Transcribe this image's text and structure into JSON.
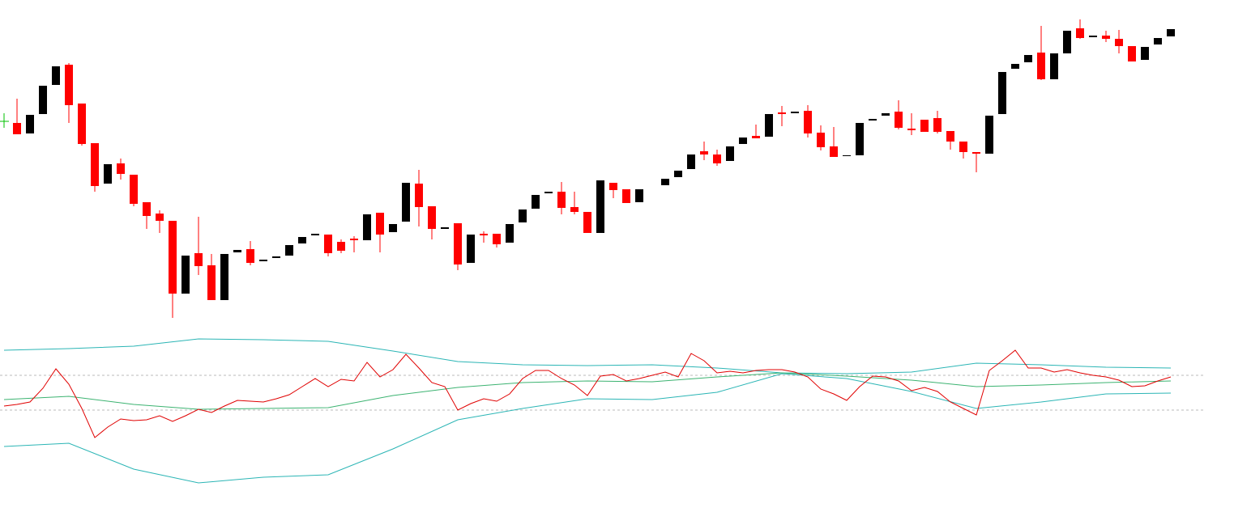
{
  "chart_data": [
    {
      "type": "candlestick",
      "up_color": "#000000",
      "down_color": "#ff0000",
      "doji_color": "#00c000",
      "xlim": [
        0,
        90
      ],
      "ylim": [
        0,
        400
      ],
      "open": [
        250,
        248,
        235,
        259,
        295,
        320,
        272,
        223,
        173,
        198,
        184,
        150,
        136,
        127,
        37,
        87,
        72,
        29,
        88,
        92,
        77,
        81,
        84,
        99,
        109,
        110,
        101,
        105,
        103,
        137,
        113,
        126,
        173,
        145,
        117,
        124,
        75,
        111,
        111,
        100,
        125,
        142,
        161,
        163,
        144,
        138,
        112,
        174,
        166,
        150,
        null,
        171,
        181,
        191,
        213,
        209,
        201,
        222,
        232,
        231,
        261,
        260,
        263,
        236,
        219,
        207,
        208,
        251,
        257,
        262,
        241,
        252,
        254,
        238,
        225,
        212,
        210,
        259,
        315,
        323,
        335,
        302,
        334,
        365,
        354,
        356,
        352,
        343,
        326,
        345,
        355
      ],
      "high": [
        260,
        278,
        258,
        294,
        318,
        322,
        272,
        223,
        197,
        204,
        184,
        150,
        140,
        127,
        84,
        132,
        86,
        86,
        91,
        102,
        79,
        83,
        97,
        107,
        111,
        110,
        104,
        108,
        135,
        137,
        123,
        174,
        190,
        145,
        119,
        124,
        110,
        114,
        111,
        123,
        141,
        159,
        163,
        175,
        163,
        138,
        177,
        174,
        166,
        166,
        null,
        179,
        189,
        209,
        225,
        215,
        219,
        230,
        246,
        259,
        269,
        262,
        270,
        245,
        243,
        208,
        248,
        253,
        260,
        276,
        260,
        252,
        263,
        238,
        225,
        212,
        257,
        311,
        321,
        332,
        368,
        334,
        362,
        376,
        356,
        362,
        363,
        343,
        342,
        353,
        364
      ],
      "low": [
        242,
        234,
        235,
        259,
        295,
        248,
        220,
        163,
        173,
        178,
        145,
        117,
        112,
        7,
        37,
        60,
        29,
        29,
        88,
        72,
        77,
        81,
        84,
        99,
        109,
        83,
        87,
        88,
        103,
        88,
        113,
        126,
        120,
        104,
        117,
        66,
        75,
        100,
        94,
        100,
        125,
        142,
        161,
        135,
        135,
        112,
        112,
        155,
        149,
        150,
        null,
        171,
        181,
        191,
        202,
        195,
        201,
        222,
        229,
        231,
        244,
        260,
        230,
        214,
        206,
        207,
        208,
        251,
        257,
        240,
        233,
        237,
        235,
        215,
        204,
        187,
        210,
        259,
        315,
        323,
        301,
        302,
        334,
        352,
        354,
        348,
        334,
        324,
        326,
        345,
        355
      ],
      "close": [
        250,
        234,
        258,
        294,
        318,
        270,
        222,
        170,
        197,
        185,
        148,
        133,
        127,
        37,
        84,
        71,
        29,
        86,
        91,
        75,
        79,
        83,
        97,
        107,
        111,
        87,
        90,
        103,
        135,
        110,
        123,
        174,
        144,
        117,
        119,
        73,
        110,
        109,
        98,
        123,
        141,
        159,
        163,
        143,
        138,
        112,
        177,
        165,
        149,
        166,
        null,
        179,
        189,
        209,
        209,
        198,
        219,
        230,
        229,
        259,
        259,
        262,
        235,
        218,
        206,
        208,
        248,
        253,
        260,
        242,
        239,
        237,
        237,
        225,
        212,
        210,
        257,
        311,
        321,
        332,
        302,
        334,
        362,
        353,
        356,
        352,
        343,
        324,
        342,
        353,
        364
      ]
    },
    {
      "type": "line",
      "xlim": [
        0,
        90
      ],
      "ylim": [
        0,
        200
      ],
      "hlines": [
        146,
        103
      ],
      "hline_color": "#bbbbbb",
      "series": [
        {
          "color": "#2bb5b5",
          "x": [
            0,
            5,
            10,
            15,
            20,
            25,
            30,
            35,
            40,
            45,
            50,
            55,
            60,
            65,
            70,
            75,
            80,
            85,
            90
          ],
          "values": [
            177,
            179,
            182,
            191,
            190,
            188,
            176,
            163,
            159,
            158,
            159,
            155,
            149,
            148,
            150,
            161,
            159,
            156,
            155
          ]
        },
        {
          "color": "#3cb371",
          "x": [
            0,
            5,
            10,
            15,
            20,
            25,
            30,
            35,
            40,
            45,
            50,
            55,
            60,
            65,
            70,
            75,
            80,
            85,
            90
          ],
          "values": [
            116,
            120,
            110,
            104,
            105,
            106,
            121,
            131,
            137,
            139,
            138,
            144,
            149,
            145,
            140,
            132,
            134,
            137,
            139
          ]
        },
        {
          "color": "#2bb5b5",
          "x": [
            0,
            5,
            10,
            15,
            20,
            25,
            30,
            35,
            40,
            45,
            50,
            55,
            60,
            65,
            70,
            75,
            80,
            85,
            90
          ],
          "values": [
            58,
            62,
            30,
            13,
            20,
            23,
            55,
            91,
            105,
            117,
            116,
            125,
            148,
            142,
            126,
            105,
            113,
            123,
            124
          ]
        },
        {
          "color": "#e00000",
          "x": [
            0,
            1,
            2,
            3,
            4,
            5,
            6,
            7,
            8,
            9,
            10,
            11,
            12,
            13,
            14,
            15,
            16,
            17,
            18,
            19,
            20,
            21,
            22,
            23,
            24,
            25,
            26,
            27,
            28,
            29,
            30,
            31,
            32,
            33,
            34,
            35,
            36,
            37,
            38,
            39,
            40,
            41,
            42,
            43,
            44,
            45,
            46,
            47,
            48,
            49,
            50,
            51,
            52,
            53,
            54,
            55,
            56,
            57,
            58,
            59,
            60,
            61,
            62,
            63,
            64,
            65,
            66,
            67,
            68,
            69,
            70,
            71,
            72,
            73,
            74,
            75,
            76,
            77,
            78,
            79,
            80,
            81,
            82,
            83,
            84,
            85,
            86,
            87,
            88,
            89,
            90
          ],
          "values": [
            108,
            110,
            113,
            130,
            154,
            135,
            105,
            69,
            82,
            92,
            90,
            91,
            96,
            89,
            96,
            104,
            100,
            108,
            115,
            114,
            113,
            117,
            122,
            132,
            142,
            132,
            141,
            139,
            162,
            144,
            153,
            172,
            155,
            137,
            132,
            103,
            111,
            117,
            114,
            123,
            142,
            152,
            152,
            142,
            134,
            121,
            145,
            147,
            139,
            142,
            146,
            150,
            144,
            173,
            164,
            149,
            151,
            149,
            152,
            153,
            153,
            150,
            144,
            129,
            123,
            115,
            132,
            145,
            144,
            139,
            127,
            131,
            126,
            113,
            105,
            97,
            152,
            164,
            177,
            155,
            155,
            150,
            153,
            149,
            146,
            144,
            140,
            132,
            133,
            139,
            144
          ]
        }
      ]
    }
  ]
}
